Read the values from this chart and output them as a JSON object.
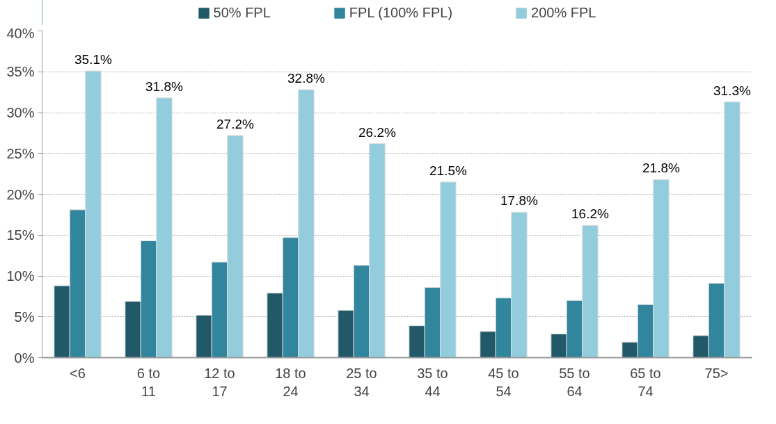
{
  "chart_data": {
    "type": "bar",
    "categories": [
      "<6",
      "6 to 11",
      "12 to 17",
      "18 to 24",
      "25 to 34",
      "35 to 44",
      "45 to 54",
      "55 to 64",
      "65 to 74",
      "75>"
    ],
    "series": [
      {
        "name": "50% FPL",
        "color": "#215968",
        "values": [
          8.8,
          6.9,
          5.2,
          7.9,
          5.8,
          3.9,
          3.2,
          2.9,
          1.9,
          2.7
        ]
      },
      {
        "name": "FPL (100% FPL)",
        "color": "#31859c",
        "values": [
          18.1,
          14.3,
          11.7,
          14.7,
          11.3,
          8.6,
          7.3,
          7.0,
          6.5,
          9.1
        ]
      },
      {
        "name": "200% FPL",
        "color": "#93cddd",
        "values": [
          35.1,
          31.8,
          27.2,
          32.8,
          26.2,
          21.5,
          17.8,
          16.2,
          21.8,
          31.3
        ],
        "value_labels": [
          "35.1%",
          "31.8%",
          "27.2%",
          "32.8%",
          "26.2%",
          "21.5%",
          "17.8%",
          "16.2%",
          "21.8%",
          "31.3%"
        ]
      }
    ],
    "ylim": [
      0,
      40
    ],
    "yticks": [
      {
        "value": 0,
        "label": "0%"
      },
      {
        "value": 5,
        "label": "5%"
      },
      {
        "value": 10,
        "label": "10%"
      },
      {
        "value": 15,
        "label": "15%"
      },
      {
        "value": 20,
        "label": "20%"
      },
      {
        "value": 25,
        "label": "25%"
      },
      {
        "value": 30,
        "label": "30%"
      },
      {
        "value": 35,
        "label": "35%"
      },
      {
        "value": 40,
        "label": "40%"
      }
    ],
    "grid": "y",
    "legend": "top"
  }
}
